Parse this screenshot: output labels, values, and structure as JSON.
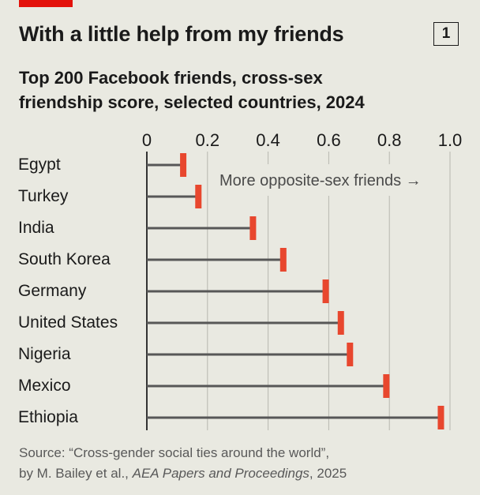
{
  "header": {
    "title": "With a little help from my friends",
    "chart_number": "1",
    "subtitle_line1": "Top 200 Facebook friends, cross-sex",
    "subtitle_line2": "friendship score, selected countries, 2024"
  },
  "footer": {
    "source_line1": "Source: “Cross-gender social ties around the world”,",
    "source_line2_prefix": "by M. Bailey et al., ",
    "source_line2_italic": "AEA Papers and Proceedings",
    "source_line2_suffix": ", 2025"
  },
  "colors": {
    "background": "#e9e9e1",
    "accent": "#e3120b",
    "marker": "#e8472e",
    "stem": "#575757",
    "grid": "#b7b7b0",
    "text": "#1a1a1a"
  },
  "chart_data": {
    "type": "bar",
    "style": "lollipop",
    "categories": [
      "Egypt",
      "Turkey",
      "India",
      "South Korea",
      "Germany",
      "United States",
      "Nigeria",
      "Mexico",
      "Ethiopia"
    ],
    "values": [
      0.12,
      0.17,
      0.35,
      0.45,
      0.59,
      0.64,
      0.67,
      0.79,
      0.97
    ],
    "xlim": [
      0,
      1.0
    ],
    "xticks": [
      0,
      0.2,
      0.4,
      0.6,
      0.8,
      1.0
    ],
    "xtick_labels": [
      "0",
      "0.2",
      "0.4",
      "0.6",
      "0.8",
      "1.0"
    ],
    "annotation": "More opposite-sex friends →",
    "grid": true,
    "axis_position": "top"
  }
}
